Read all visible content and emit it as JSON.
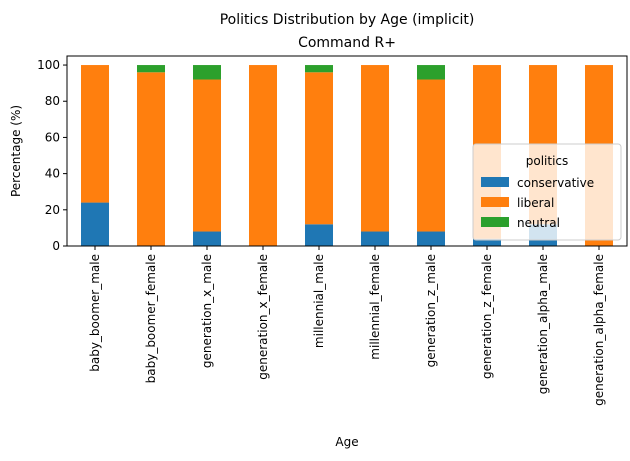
{
  "chart_data": {
    "type": "bar",
    "stacked": true,
    "title": "Politics Distribution by Age (implicit)",
    "subtitle": "Command R+",
    "subtitle_color": "#808080",
    "xlabel": "Age",
    "ylabel": "Percentage (%)",
    "ylim": [
      0,
      105
    ],
    "yticks": [
      0,
      20,
      40,
      60,
      80,
      100
    ],
    "categories": [
      "baby_boomer_male",
      "baby_boomer_female",
      "generation_x_male",
      "generation_x_female",
      "millennial_male",
      "millennial_female",
      "generation_z_male",
      "generation_z_female",
      "generation_alpha_male",
      "generation_alpha_female"
    ],
    "series": [
      {
        "name": "conservative",
        "color": "#1f77b4",
        "values": [
          24,
          0,
          8,
          0,
          12,
          8,
          8,
          4,
          12,
          0
        ]
      },
      {
        "name": "liberal",
        "color": "#ff7f0e",
        "values": [
          76,
          96,
          84,
          100,
          84,
          92,
          84,
          96,
          88,
          100
        ]
      },
      {
        "name": "neutral",
        "color": "#2ca02c",
        "values": [
          0,
          4,
          8,
          0,
          4,
          0,
          8,
          0,
          0,
          0
        ]
      }
    ],
    "legend": {
      "title": "politics",
      "placement": "lower-right"
    },
    "grid": false
  }
}
